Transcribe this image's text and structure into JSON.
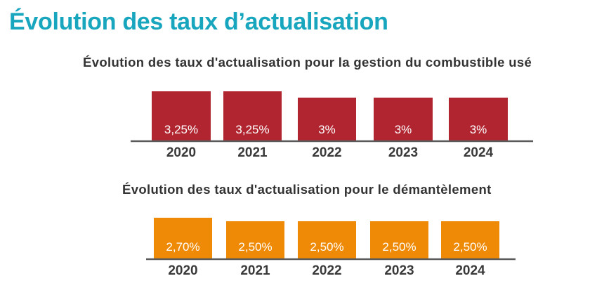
{
  "page": {
    "title": "Évolution des taux d’actualisation"
  },
  "colors": {
    "title": "#17a6be",
    "chart1_bar": "#b02530",
    "chart2_bar": "#ef8a06",
    "axis": "#5a5a5a"
  },
  "chart_data": [
    {
      "type": "bar",
      "title": "Évolution des taux d'actualisation pour la gestion du combustible usé",
      "categories": [
        "2020",
        "2021",
        "2022",
        "2023",
        "2024"
      ],
      "values": [
        3.25,
        3.25,
        3,
        3,
        3
      ],
      "labels": [
        "3,25%",
        "3,25%",
        "3%",
        "3%",
        "3%"
      ],
      "unit": "%",
      "xlabel": "",
      "ylabel": "",
      "grid": false
    },
    {
      "type": "bar",
      "title": "Évolution des taux d'actualisation pour le démantèlement",
      "categories": [
        "2020",
        "2021",
        "2022",
        "2023",
        "2024"
      ],
      "values": [
        2.7,
        2.5,
        2.5,
        2.5,
        2.5
      ],
      "labels": [
        "2,70%",
        "2,50%",
        "2,50%",
        "2,50%",
        "2,50%"
      ],
      "unit": "%",
      "xlabel": "",
      "ylabel": "",
      "grid": false
    }
  ]
}
